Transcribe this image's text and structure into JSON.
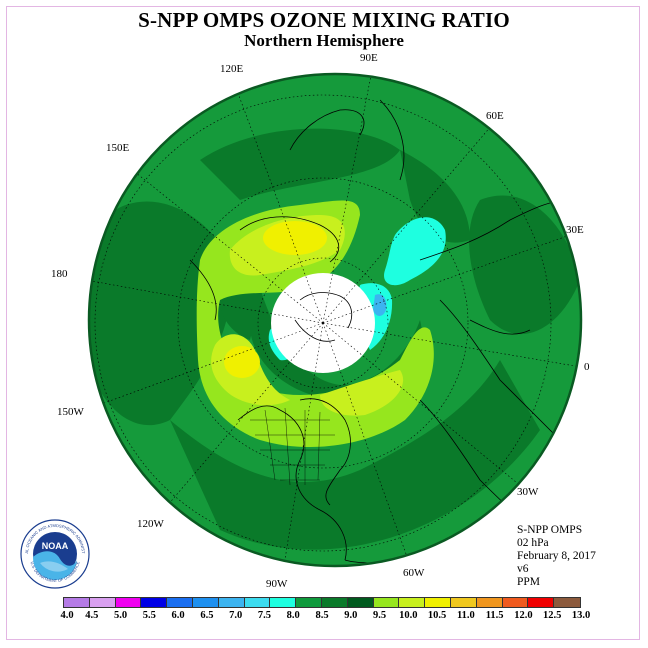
{
  "header": {
    "title": "S-NPP OMPS OZONE MIXING RATIO",
    "subtitle": "Northern Hemisphere"
  },
  "longitude_labels": [
    "90E",
    "60E",
    "30E",
    "0",
    "30W",
    "60W",
    "90W",
    "120W",
    "150W",
    "180",
    "150E",
    "120E"
  ],
  "info": {
    "instrument": "S-NPP OMPS",
    "pressure": "02 hPa",
    "date": "February 8, 2017",
    "version": "v6",
    "units": "PPM"
  },
  "logo": {
    "text": "NOAA",
    "ring_text_top": "NATIONAL OCEANIC AND ATMOSPHERIC ADMINISTRATION",
    "ring_text_bottom": "U.S. DEPARTMENT OF COMMERCE",
    "icon": "noaa-logo-icon"
  },
  "colorbar": {
    "labels": [
      "4.0",
      "4.5",
      "5.0",
      "5.5",
      "6.0",
      "6.5",
      "7.0",
      "7.5",
      "8.0",
      "8.5",
      "9.0",
      "9.5",
      "10.0",
      "10.5",
      "11.0",
      "11.5",
      "12.0",
      "12.5",
      "13.0"
    ],
    "colors": [
      "#b57be6",
      "#d9a0f0",
      "#f000f0",
      "#0000e6",
      "#1a6ef0",
      "#1e90f0",
      "#3cb4f0",
      "#3cdcf0",
      "#1effe0",
      "#0f9a3c",
      "#0a7a2a",
      "#005a1e",
      "#96e61e",
      "#c8f01e",
      "#f0f000",
      "#f0c81e",
      "#f0961e",
      "#f05a1e",
      "#f00000",
      "#8c5a3c"
    ]
  },
  "map": {
    "projection": "north polar stereographic",
    "missing_data_region": "polar night (white)",
    "colors": {
      "ocean_base": "#159a3b",
      "dark_band": "#0a7a2a",
      "light_band": "#96e61e",
      "yellow_green": "#c8f01e",
      "yellow": "#f0f000",
      "cyan": "#1effe0",
      "blue": "#3cb4f0"
    }
  }
}
